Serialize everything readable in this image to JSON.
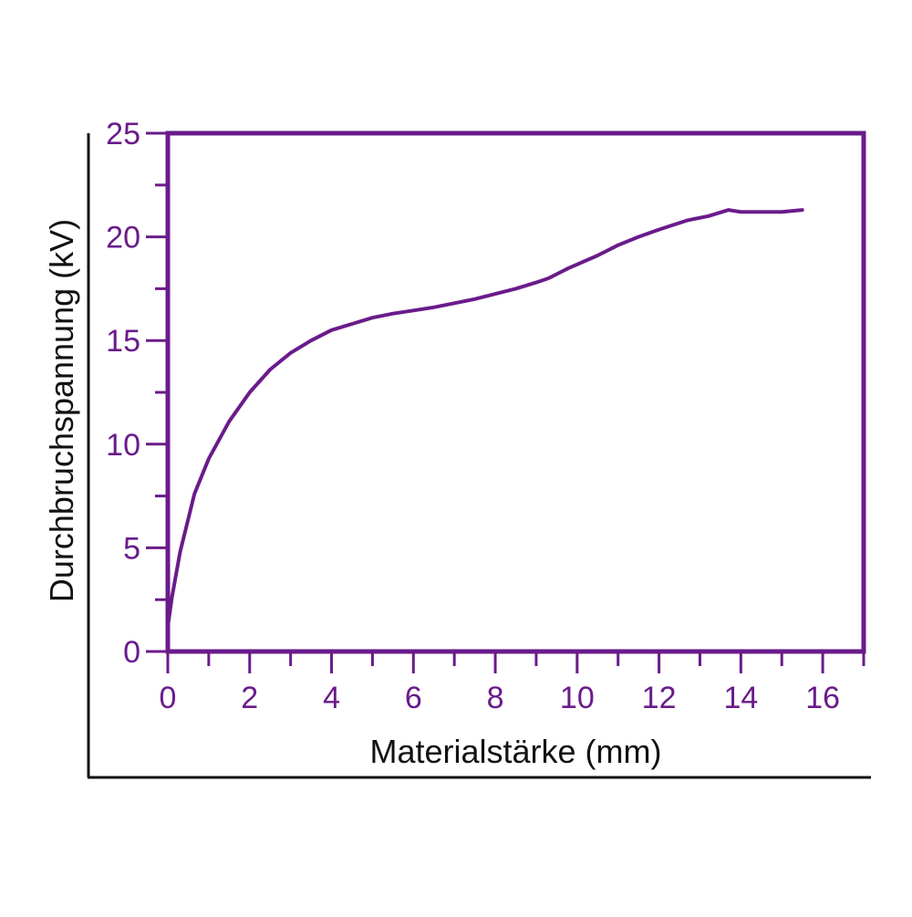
{
  "chart_data": {
    "type": "line",
    "title": "",
    "xlabel": "Materialstärke (mm)",
    "ylabel": "Durchbruchspannung (kV)",
    "xlim": [
      0,
      17
    ],
    "ylim": [
      0,
      25
    ],
    "x_ticks": [
      "0",
      "2",
      "4",
      "6",
      "8",
      "10",
      "12",
      "14",
      "16"
    ],
    "y_ticks": [
      "0",
      "5",
      "10",
      "15",
      "20",
      "25"
    ],
    "x_tick_values": [
      0,
      2,
      4,
      6,
      8,
      10,
      12,
      14,
      16
    ],
    "y_tick_values": [
      0,
      5,
      10,
      15,
      20,
      25
    ],
    "grid": false,
    "legend": "none",
    "series": [
      {
        "color": "#6a1b8a",
        "x": [
          0.0,
          0.1,
          0.3,
          0.65,
          1.0,
          1.5,
          2.0,
          2.5,
          3.0,
          3.5,
          4.0,
          4.5,
          5.0,
          5.5,
          6.0,
          6.5,
          7.0,
          7.5,
          8.0,
          8.5,
          9.0,
          9.3,
          9.8,
          10.5,
          11.0,
          11.5,
          12.0,
          12.7,
          13.2,
          13.7,
          14.0,
          14.5,
          15.0,
          15.5
        ],
        "y": [
          1.2,
          2.6,
          4.8,
          7.6,
          9.3,
          11.1,
          12.5,
          13.6,
          14.4,
          15.0,
          15.5,
          15.8,
          16.1,
          16.3,
          16.45,
          16.6,
          16.8,
          17.0,
          17.25,
          17.5,
          17.8,
          18.0,
          18.5,
          19.1,
          19.6,
          20.0,
          20.35,
          20.8,
          21.0,
          21.3,
          21.2,
          21.2,
          21.2,
          21.3
        ]
      }
    ],
    "colors": {
      "axis": "#6a1b8a",
      "frame": "#111111",
      "text": "#111111"
    }
  }
}
